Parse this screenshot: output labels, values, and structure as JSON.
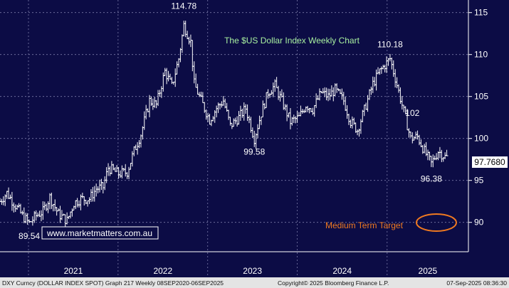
{
  "chart_data": {
    "type": "ohlc",
    "title": "The $US Dollar Index Weekly Chart",
    "watermark": "www.marketmatters.com.au",
    "y_ticks": [
      90,
      95,
      100,
      105,
      110,
      115
    ],
    "ylim": [
      86.5,
      116.5
    ],
    "x_ticks": [
      "2021",
      "2022",
      "2023",
      "2024",
      "2025"
    ],
    "last_value": "97.7680",
    "annotations": [
      {
        "text": "114.78",
        "x": "2022-09-26",
        "y": 114.78
      },
      {
        "text": "99.58",
        "x": "2023-07-10",
        "y": 99.58
      },
      {
        "text": "110.18",
        "x": "2025-01-13",
        "y": 110.18
      },
      {
        "text": "102",
        "x": "2025-04-14",
        "y": 102
      },
      {
        "text": "96.38",
        "x": "2025-06-30",
        "y": 96.38
      },
      {
        "text": "89.54",
        "x": "2021-01-04",
        "y": 89.54
      }
    ],
    "target_label": "Medium Term Target",
    "target_level": 90.7,
    "series": [
      {
        "name": "DXY",
        "points": [
          [
            "2020-09-07",
            92.5
          ],
          [
            "2020-10-05",
            93.5
          ],
          [
            "2020-11-02",
            92.3
          ],
          [
            "2020-12-07",
            90.8
          ],
          [
            "2021-01-04",
            89.9
          ],
          [
            "2021-02-01",
            90.8
          ],
          [
            "2021-03-01",
            91.3
          ],
          [
            "2021-03-29",
            93.0
          ],
          [
            "2021-05-03",
            91.0
          ],
          [
            "2021-06-07",
            90.2
          ],
          [
            "2021-07-05",
            92.3
          ],
          [
            "2021-08-02",
            92.8
          ],
          [
            "2021-09-06",
            92.8
          ],
          [
            "2021-10-04",
            94.0
          ],
          [
            "2021-11-01",
            94.2
          ],
          [
            "2021-11-22",
            96.5
          ],
          [
            "2022-01-03",
            95.8
          ],
          [
            "2022-02-07",
            96.0
          ],
          [
            "2022-03-07",
            98.5
          ],
          [
            "2022-04-04",
            100.5
          ],
          [
            "2022-05-09",
            104.5
          ],
          [
            "2022-06-06",
            104.0
          ],
          [
            "2022-07-11",
            108.0
          ],
          [
            "2022-08-08",
            106.2
          ],
          [
            "2022-09-05",
            109.5
          ],
          [
            "2022-09-26",
            113.5
          ],
          [
            "2022-10-24",
            111.5
          ],
          [
            "2022-11-07",
            106.5
          ],
          [
            "2022-12-05",
            104.5
          ],
          [
            "2023-01-09",
            102.2
          ],
          [
            "2023-02-06",
            103.6
          ],
          [
            "2023-03-06",
            104.5
          ],
          [
            "2023-04-03",
            101.5
          ],
          [
            "2023-05-08",
            102.5
          ],
          [
            "2023-06-05",
            103.6
          ],
          [
            "2023-07-10",
            100.0
          ],
          [
            "2023-08-07",
            103.0
          ],
          [
            "2023-09-04",
            105.5
          ],
          [
            "2023-10-02",
            106.3
          ],
          [
            "2023-11-06",
            104.0
          ],
          [
            "2023-12-04",
            102.0
          ],
          [
            "2024-01-08",
            102.5
          ],
          [
            "2024-02-05",
            104.0
          ],
          [
            "2024-03-04",
            103.5
          ],
          [
            "2024-04-08",
            105.5
          ],
          [
            "2024-05-06",
            105.0
          ],
          [
            "2024-06-03",
            105.8
          ],
          [
            "2024-07-08",
            104.5
          ],
          [
            "2024-08-05",
            102.0
          ],
          [
            "2024-09-02",
            101.0
          ],
          [
            "2024-10-07",
            104.0
          ],
          [
            "2024-11-04",
            106.5
          ],
          [
            "2024-12-02",
            108.0
          ],
          [
            "2025-01-13",
            109.5
          ],
          [
            "2025-02-03",
            107.2
          ],
          [
            "2025-03-03",
            104.0
          ],
          [
            "2025-04-07",
            100.0
          ],
          [
            "2025-05-05",
            100.2
          ],
          [
            "2025-06-02",
            98.5
          ],
          [
            "2025-06-30",
            97.0
          ],
          [
            "2025-07-28",
            98.5
          ],
          [
            "2025-08-25",
            97.8
          ],
          [
            "2025-09-01",
            97.77
          ]
        ]
      }
    ]
  },
  "footer": {
    "left": "DXY Curncy (DOLLAR INDEX SPOT) Graph 217  Weekly 08SEP2020-06SEP2025",
    "copyright": "Copyright© 2025 Bloomberg Finance L.P.",
    "timestamp": "07-Sep-2025 08:36:30"
  },
  "colors": {
    "background": "#0c0c45",
    "bars": "#ffffff",
    "title": "#a8f0a0",
    "target": "#f07a20",
    "footer_bg": "#e4e4e4"
  }
}
